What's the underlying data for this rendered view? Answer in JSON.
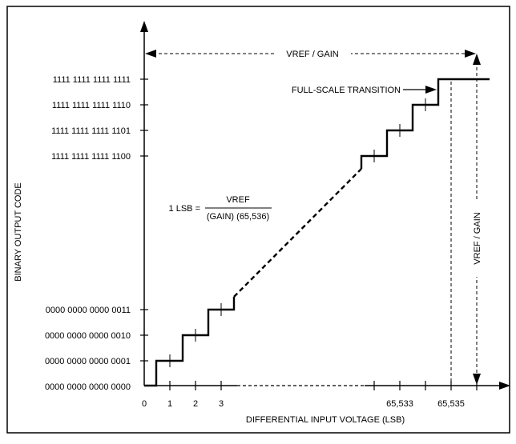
{
  "chart_data": {
    "type": "line",
    "xlabel": "DIFFERENTIAL INPUT VOLTAGE (LSB)",
    "ylabel": "BINARY OUTPUT CODE",
    "y_codes": [
      "1111 1111 1111 1111",
      "1111 1111 1111 1110",
      "1111 1111 1111 1101",
      "1111 1111 1111 1100",
      "0000 0000 0000 0011",
      "0000 0000 0000 0010",
      "0000 0000 0000 0001",
      "0000 0000 0000 0000"
    ],
    "x_ticks": [
      "0",
      "1",
      "2",
      "3",
      "65,533",
      "65,535"
    ],
    "annotations": {
      "top_span": "VREF / GAIN",
      "side_span": "VREF / GAIN",
      "full_scale": "FULL-SCALE TRANSITION",
      "lsb_lhs": "1 LSB =",
      "lsb_num": "VREF",
      "lsb_den": "(GAIN) (65,536)"
    }
  }
}
